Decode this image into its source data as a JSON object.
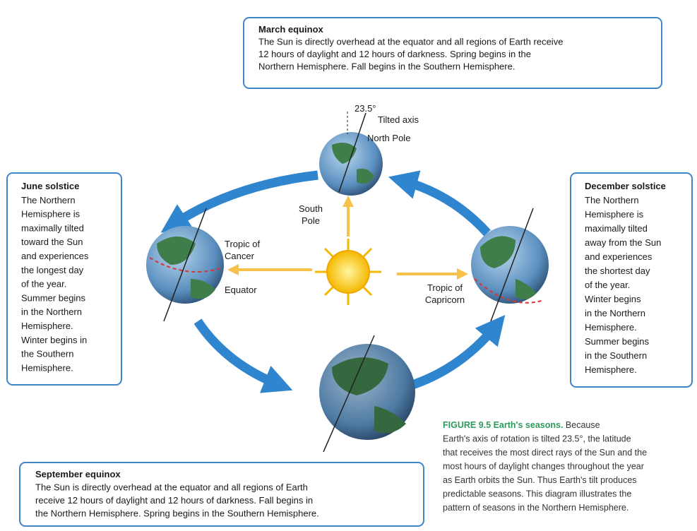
{
  "boxes": {
    "march": {
      "title": "March equinox",
      "lines": [
        "The Sun is directly overhead at the equator and all regions of Earth receive",
        "12 hours of daylight and 12 hours of darkness. Spring begins in the",
        "Northern Hemisphere. Fall begins in the Southern Hemisphere."
      ]
    },
    "june": {
      "title": "June solstice",
      "lines": [
        "The Northern",
        "Hemisphere is",
        "maximally tilted",
        "toward the Sun",
        "and experiences",
        "the longest day",
        "of the year.",
        "Summer begins",
        "in the Northern",
        "Hemisphere.",
        "Winter begins in",
        "the Southern",
        "Hemisphere."
      ]
    },
    "december": {
      "title": "December solstice",
      "lines": [
        "The Northern",
        "Hemisphere is",
        "maximally tilted",
        "away from the Sun",
        "and experiences",
        "the shortest day",
        "of the year.",
        "Winter begins",
        "in the Northern",
        "Hemisphere.",
        "Summer begins",
        "in the Southern",
        "Hemisphere."
      ]
    },
    "september": {
      "title": "September equinox",
      "lines": [
        "The Sun is directly overhead at the equator and all regions of Earth",
        "receive 12 hours of daylight and 12 hours of darkness. Fall begins in",
        "the Northern Hemisphere. Spring begins in the Southern Hemisphere."
      ]
    }
  },
  "labels": {
    "tilt": "23.5°",
    "tilted_axis": "Tilted axis",
    "north_pole": "North Pole",
    "south_pole": [
      "South",
      "Pole"
    ],
    "tropic_cancer": [
      "Tropic of",
      "Cancer"
    ],
    "equator": "Equator",
    "tropic_capricorn": [
      "Tropic of",
      "Capricorn"
    ]
  },
  "caption": {
    "figure": "FIGURE 9.5",
    "title": "Earth's seasons.",
    "lines": [
      "Because",
      "Earth's axis of rotation is tilted 23.5°, the latitude",
      "that receives the most direct rays of the Sun and the",
      "most hours of daylight changes throughout the year",
      "as Earth orbits the Sun. Thus Earth's tilt produces",
      "predictable seasons. This diagram illustrates the",
      "pattern of seasons in the Northern Hemisphere."
    ]
  }
}
